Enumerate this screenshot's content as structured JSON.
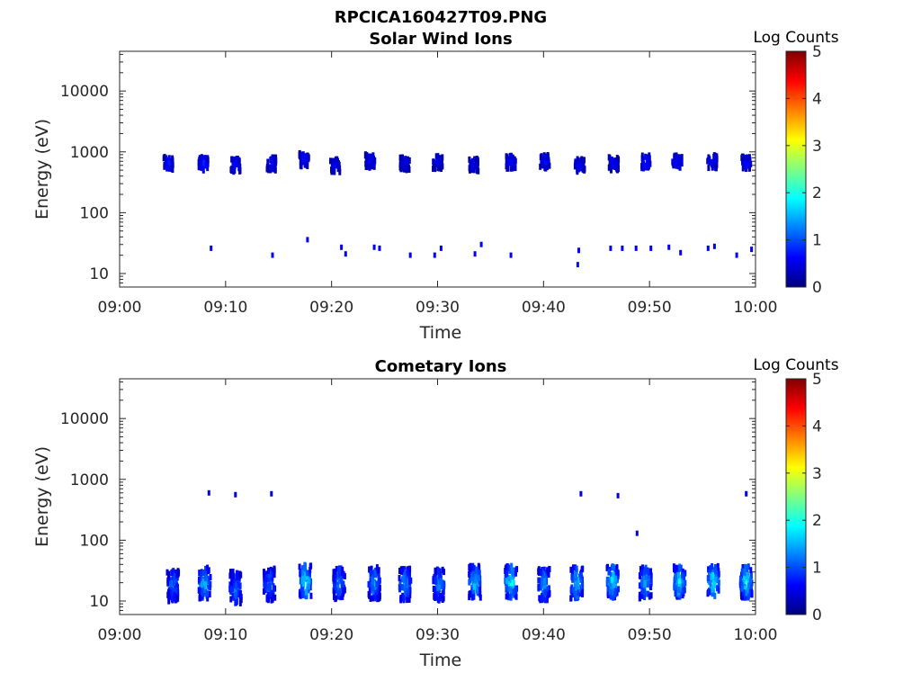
{
  "figure_title": "RPCICA160427T09.PNG",
  "colors": {
    "axis": "#262626",
    "colormap": [
      "#00007f",
      "#0000ff",
      "#007fff",
      "#00ffff",
      "#7fff7f",
      "#ffff00",
      "#ff7f00",
      "#ff0000",
      "#7f0000"
    ]
  },
  "chart_data": [
    {
      "type": "heatmap",
      "title": "Solar Wind Ions",
      "xlabel": "Time",
      "ylabel": "Energy (eV)",
      "x_unit": "minutes after 09:00",
      "xlim": [
        "09:00",
        "10:00"
      ],
      "xticks": [
        "09:00",
        "09:10",
        "09:20",
        "09:30",
        "09:40",
        "09:50",
        "10:00"
      ],
      "yscale": "log",
      "ylim": [
        6,
        45000
      ],
      "yticks": [
        "10",
        "100",
        "1000",
        "10000"
      ],
      "colorbar": {
        "label": "Log Counts",
        "range": [
          0,
          5
        ],
        "ticks": [
          "0",
          "1",
          "2",
          "3",
          "4",
          "5"
        ]
      },
      "blobs": [
        {
          "t": 4.5,
          "e": 650,
          "c": 0.6
        },
        {
          "t": 7.8,
          "e": 650,
          "c": 0.7
        },
        {
          "t": 10.8,
          "e": 620,
          "c": 0.6
        },
        {
          "t": 14.2,
          "e": 650,
          "c": 0.6
        },
        {
          "t": 17.3,
          "e": 750,
          "c": 0.6
        },
        {
          "t": 20.2,
          "e": 600,
          "c": 0.5
        },
        {
          "t": 23.5,
          "e": 720,
          "c": 0.6
        },
        {
          "t": 26.8,
          "e": 650,
          "c": 0.5
        },
        {
          "t": 29.9,
          "e": 680,
          "c": 0.5
        },
        {
          "t": 33.3,
          "e": 620,
          "c": 0.5
        },
        {
          "t": 36.8,
          "e": 680,
          "c": 0.6
        },
        {
          "t": 40.0,
          "e": 700,
          "c": 0.6
        },
        {
          "t": 43.3,
          "e": 620,
          "c": 0.6
        },
        {
          "t": 46.5,
          "e": 650,
          "c": 0.6
        },
        {
          "t": 49.5,
          "e": 700,
          "c": 0.7
        },
        {
          "t": 52.5,
          "e": 700,
          "c": 0.6
        },
        {
          "t": 55.8,
          "e": 700,
          "c": 0.6
        },
        {
          "t": 59.0,
          "e": 680,
          "c": 0.6
        }
      ],
      "dots": [
        {
          "t": 8.5,
          "e": 26,
          "c": 0.6
        },
        {
          "t": 14.3,
          "e": 20,
          "c": 0.6
        },
        {
          "t": 17.6,
          "e": 36,
          "c": 0.6
        },
        {
          "t": 20.8,
          "e": 27,
          "c": 0.6
        },
        {
          "t": 21.2,
          "e": 21,
          "c": 0.6
        },
        {
          "t": 23.9,
          "e": 27,
          "c": 0.6
        },
        {
          "t": 24.4,
          "e": 26,
          "c": 0.6
        },
        {
          "t": 27.3,
          "e": 20,
          "c": 0.6
        },
        {
          "t": 29.6,
          "e": 20,
          "c": 0.6
        },
        {
          "t": 30.2,
          "e": 26,
          "c": 0.6
        },
        {
          "t": 33.4,
          "e": 21,
          "c": 0.6
        },
        {
          "t": 34.0,
          "e": 30,
          "c": 0.6
        },
        {
          "t": 36.8,
          "e": 20,
          "c": 0.6
        },
        {
          "t": 43.2,
          "e": 24,
          "c": 0.6
        },
        {
          "t": 43.1,
          "e": 14,
          "c": 0.7
        },
        {
          "t": 46.2,
          "e": 26,
          "c": 0.6
        },
        {
          "t": 47.3,
          "e": 26,
          "c": 0.6
        },
        {
          "t": 48.6,
          "e": 26,
          "c": 0.6
        },
        {
          "t": 50.0,
          "e": 26,
          "c": 0.6
        },
        {
          "t": 51.7,
          "e": 27,
          "c": 0.6
        },
        {
          "t": 52.8,
          "e": 22,
          "c": 0.6
        },
        {
          "t": 55.4,
          "e": 26,
          "c": 0.6
        },
        {
          "t": 56.0,
          "e": 28,
          "c": 0.6
        },
        {
          "t": 58.1,
          "e": 20,
          "c": 0.6
        },
        {
          "t": 59.5,
          "e": 25,
          "c": 0.6
        }
      ]
    },
    {
      "type": "heatmap",
      "title": "Cometary Ions",
      "xlabel": "Time",
      "ylabel": "Energy (eV)",
      "x_unit": "minutes after 09:00",
      "xlim": [
        "09:00",
        "10:00"
      ],
      "xticks": [
        "09:00",
        "09:10",
        "09:20",
        "09:30",
        "09:40",
        "09:50",
        "10:00"
      ],
      "yscale": "log",
      "ylim": [
        6,
        45000
      ],
      "yticks": [
        "10",
        "100",
        "1000",
        "10000"
      ],
      "colorbar": {
        "label": "Log Counts",
        "range": [
          0,
          5
        ],
        "ticks": [
          "0",
          "1",
          "2",
          "3",
          "4",
          "5"
        ]
      },
      "blobs": [
        {
          "t": 4.9,
          "e": 18,
          "c": 1.0
        },
        {
          "t": 7.9,
          "e": 20,
          "c": 1.3
        },
        {
          "t": 10.8,
          "e": 17,
          "c": 1.0
        },
        {
          "t": 14.0,
          "e": 19,
          "c": 1.0
        },
        {
          "t": 17.4,
          "e": 22,
          "c": 1.6
        },
        {
          "t": 20.6,
          "e": 20,
          "c": 1.1
        },
        {
          "t": 23.9,
          "e": 20,
          "c": 1.2
        },
        {
          "t": 26.8,
          "e": 19,
          "c": 1.2
        },
        {
          "t": 30.0,
          "e": 19,
          "c": 1.1
        },
        {
          "t": 33.4,
          "e": 21,
          "c": 1.4
        },
        {
          "t": 36.8,
          "e": 21,
          "c": 1.6
        },
        {
          "t": 39.9,
          "e": 19,
          "c": 1.2
        },
        {
          "t": 43.0,
          "e": 20,
          "c": 1.4
        },
        {
          "t": 46.4,
          "e": 21,
          "c": 1.5
        },
        {
          "t": 49.5,
          "e": 20,
          "c": 1.3
        },
        {
          "t": 52.7,
          "e": 21,
          "c": 1.5
        },
        {
          "t": 55.9,
          "e": 21,
          "c": 1.6
        },
        {
          "t": 59.0,
          "e": 21,
          "c": 1.6
        }
      ],
      "dots": [
        {
          "t": 8.3,
          "e": 600,
          "c": 0.5
        },
        {
          "t": 10.8,
          "e": 560,
          "c": 0.5
        },
        {
          "t": 14.2,
          "e": 580,
          "c": 0.5
        },
        {
          "t": 43.4,
          "e": 580,
          "c": 0.5
        },
        {
          "t": 46.9,
          "e": 540,
          "c": 0.5
        },
        {
          "t": 48.7,
          "e": 130,
          "c": 0.5
        },
        {
          "t": 59.0,
          "e": 580,
          "c": 0.5
        }
      ]
    }
  ]
}
